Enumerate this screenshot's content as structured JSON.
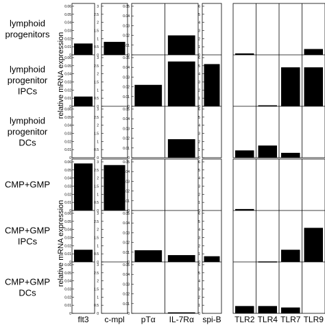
{
  "figure": {
    "ylabel": "relative mRNA expression"
  },
  "chart_data": {
    "type": "bar",
    "groups": [
      {
        "name": "top",
        "rows": [
          "lymphoid\nprogenitors",
          "lymphoid\nprogenitor\nIPCs",
          "lymphoid\nprogenitor\nDCs"
        ]
      },
      {
        "name": "bottom",
        "rows": [
          "CMP+GMP",
          "CMP+GMP\nIPCs",
          "CMP+GMP\nDCs"
        ]
      }
    ],
    "panels": [
      {
        "genes": [
          "flt3"
        ],
        "ticks": [
          "0.06",
          "0.05",
          "0.04",
          "0.03",
          "0.02",
          "0.01",
          "0"
        ],
        "ymax": 0.06,
        "values": [
          [
            0.014
          ],
          [
            0.012
          ],
          [
            0.0
          ],
          [
            0.058
          ],
          [
            0.015
          ],
          [
            0.0
          ]
        ]
      },
      {
        "genes": [
          "c-mpl"
        ],
        "ticks": [
          "3",
          "2.5",
          "2",
          "1.5",
          "1",
          "0.5",
          "0"
        ],
        "ymax": 3,
        "values": [
          [
            0.8
          ],
          [
            0.0
          ],
          [
            0.0
          ],
          [
            2.8
          ],
          [
            0.0
          ],
          [
            0.0
          ]
        ]
      },
      {
        "genes": [
          "pTα",
          "IL-7Rα"
        ],
        "ticks": [
          "0.05",
          "0.04",
          "0.03",
          "0.02",
          "0.01",
          "0"
        ],
        "ymax": 0.05,
        "values": [
          [
            0.0,
            0.02
          ],
          [
            0.022,
            0.046
          ],
          [
            0.0,
            0.019
          ],
          [
            0.0,
            0.0
          ],
          [
            0.012,
            0.007
          ],
          [
            0.0,
            0.001
          ]
        ]
      },
      {
        "genes": [
          "spi-B"
        ],
        "ticks": [
          "6",
          "5",
          "4",
          "3",
          "2",
          "1",
          "0"
        ],
        "ymax": 6,
        "values": [
          [
            0.0
          ],
          [
            5.2
          ],
          [
            0.0
          ],
          [
            0.0
          ],
          [
            0.7
          ],
          [
            0.0
          ]
        ]
      },
      {
        "genes": [
          "TLR2",
          "TLR4",
          "TLR7",
          "TLR9"
        ],
        "ticks": [],
        "ymax": 0.1,
        "values": [
          [
            0.003,
            0.0,
            0.0,
            0.012
          ],
          [
            0.0,
            0.002,
            0.08,
            0.08
          ],
          [
            0.015,
            0.025,
            0.01,
            0.0
          ],
          [
            0.003,
            0.0,
            0.0,
            0.0
          ],
          [
            0.0,
            0.001,
            0.025,
            0.07
          ],
          [
            0.015,
            0.015,
            0.012,
            0.0
          ]
        ]
      }
    ]
  }
}
